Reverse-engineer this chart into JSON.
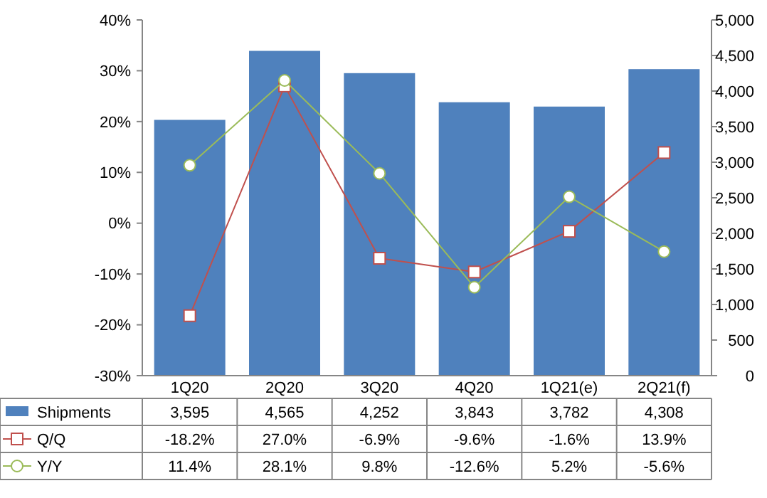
{
  "chart_data": {
    "type": "bar",
    "categories": [
      "1Q20",
      "2Q20",
      "3Q20",
      "4Q20",
      "1Q21(e)",
      "2Q21(f)"
    ],
    "series": [
      {
        "name": "Shipments",
        "axis": "y2",
        "color": "#4f81bd",
        "values": [
          3595,
          4565,
          4252,
          3843,
          3782,
          4308
        ],
        "value_labels": [
          "3,595",
          "4,565",
          "4,252",
          "3,843",
          "3,782",
          "4,308"
        ]
      },
      {
        "name": "Q/Q",
        "type": "line",
        "axis": "y",
        "color": "#c0504d",
        "marker": "square",
        "values": [
          -18.2,
          27.0,
          -6.9,
          -9.6,
          -1.6,
          13.9
        ],
        "value_labels": [
          "-18.2%",
          "27.0%",
          "-6.9%",
          "-9.6%",
          "-1.6%",
          "13.9%"
        ]
      },
      {
        "name": "Y/Y",
        "type": "line",
        "axis": "y",
        "color": "#9bbb59",
        "marker": "circle",
        "values": [
          11.4,
          28.1,
          9.8,
          -12.6,
          5.2,
          -5.6
        ],
        "value_labels": [
          "11.4%",
          "28.1%",
          "9.8%",
          "-12.6%",
          "5.2%",
          "-5.6%"
        ]
      }
    ],
    "ylim": [
      -30,
      40
    ],
    "yticks": [
      {
        "value": -30,
        "label": "-30%"
      },
      {
        "value": -20,
        "label": "-20%"
      },
      {
        "value": -10,
        "label": "-10%"
      },
      {
        "value": 0,
        "label": "0%"
      },
      {
        "value": 10,
        "label": "10%"
      },
      {
        "value": 20,
        "label": "20%"
      },
      {
        "value": 30,
        "label": "30%"
      },
      {
        "value": 40,
        "label": "40%"
      }
    ],
    "y2lim": [
      0,
      5000
    ],
    "y2ticks": [
      0,
      {
        "value": 500,
        "label": "500"
      },
      {
        "value": 1000,
        "label": "1,000"
      },
      {
        "value": 1500,
        "label": "1,500"
      },
      {
        "value": 2000,
        "label": "2,000"
      },
      {
        "value": 2500,
        "label": "2,500"
      },
      {
        "value": 3000,
        "label": "3,000"
      },
      {
        "value": 3500,
        "label": "3,500"
      },
      {
        "value": 4000,
        "label": "4,000"
      },
      {
        "value": 4500,
        "label": "4,500"
      },
      {
        "value": 5000,
        "label": "5,000"
      }
    ],
    "legend": "bottom",
    "grid": false
  }
}
